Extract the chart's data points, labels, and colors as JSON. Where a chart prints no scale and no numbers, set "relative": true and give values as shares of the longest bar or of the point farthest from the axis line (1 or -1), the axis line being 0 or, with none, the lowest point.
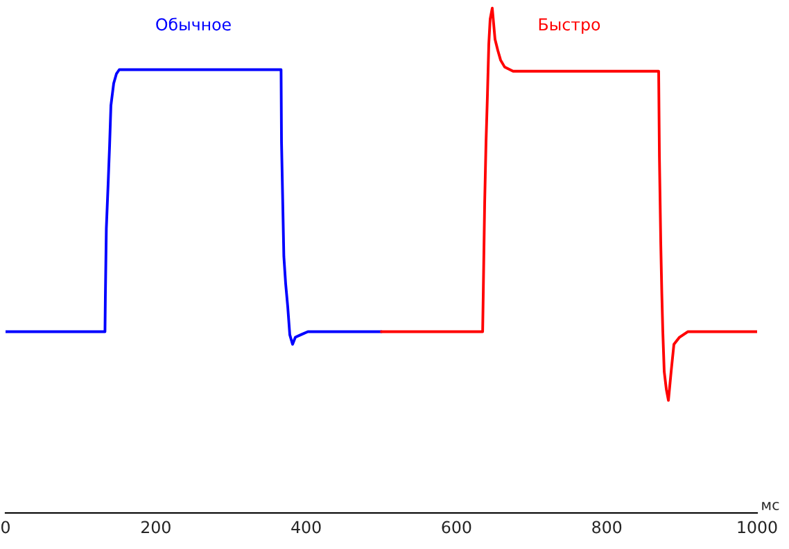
{
  "chart_data": {
    "type": "line",
    "xlabel": "мс",
    "relative": true,
    "xlim": [
      0,
      1000
    ],
    "xticks": [
      0,
      200,
      400,
      600,
      800,
      1000
    ],
    "grid": false,
    "legend": false,
    "marker": "none",
    "line_style": "solid",
    "series": [
      {
        "name": "Обычное",
        "color": "#0000ff",
        "x": [
          0,
          132.3,
          132.8,
          134.1,
          136.5,
          138.4,
          140.2,
          143.9,
          147.6,
          151.3,
          366.6,
          367.2,
          370.3,
          372.7,
          375.5,
          378.2,
          381.9,
          385.6,
          393,
          402.2,
          500
        ],
        "values": [
          0.359,
          0.359,
          0.427,
          0.563,
          0.652,
          0.726,
          0.807,
          0.851,
          0.87,
          0.878,
          0.878,
          0.734,
          0.508,
          0.454,
          0.408,
          0.353,
          0.334,
          0.348,
          0.353,
          0.359,
          0.359
        ]
      },
      {
        "name": "Быстро",
        "color": "#ff0000",
        "x": [
          500,
          634.8,
          635.6,
          637.5,
          639.3,
          641.1,
          643,
          644.8,
          647.6,
          651.3,
          655,
          658.7,
          664.2,
          675.3,
          869,
          870,
          871.8,
          873.2,
          874.5,
          876.4,
          879.2,
          882,
          885.6,
          889.3,
          896.7,
          907.7,
          1000
        ],
        "values": [
          0.359,
          0.359,
          0.432,
          0.614,
          0.734,
          0.823,
          0.929,
          0.978,
          1,
          0.938,
          0.916,
          0.897,
          0.883,
          0.875,
          0.875,
          0.707,
          0.535,
          0.435,
          0.361,
          0.28,
          0.245,
          0.223,
          0.28,
          0.334,
          0.348,
          0.359,
          0.359
        ]
      }
    ]
  }
}
